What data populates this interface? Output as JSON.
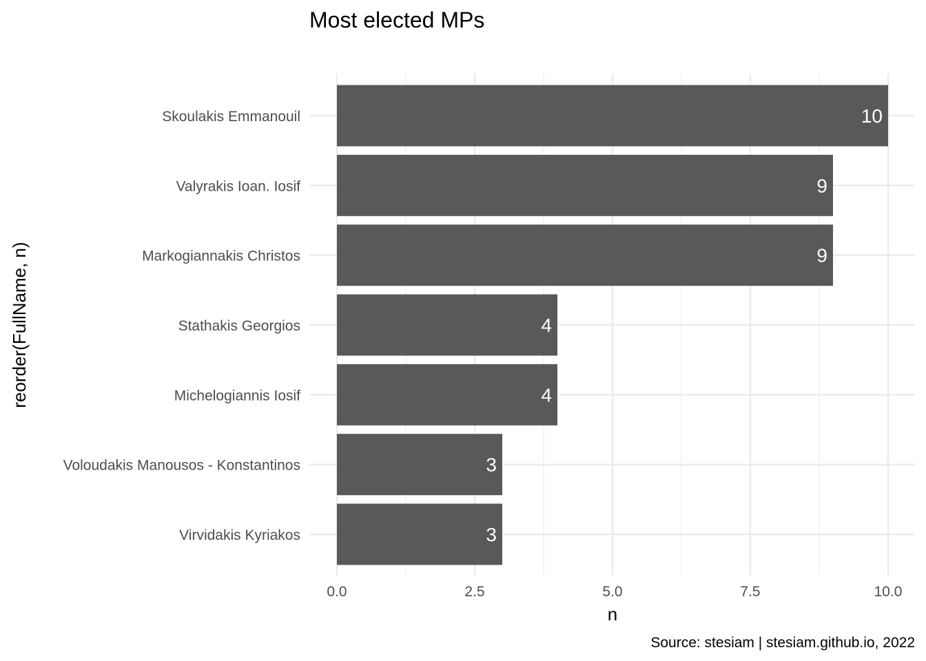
{
  "chart_data": {
    "type": "bar",
    "orientation": "horizontal",
    "title": "Most elected MPs",
    "xlabel": "n",
    "ylabel": "reorder(FullName, n)",
    "caption": "Source: stesiam | stesiam.github.io, 2022",
    "categories": [
      "Skoulakis Emmanouil",
      "Valyrakis Ioan. Iosif",
      "Markogiannakis Christos",
      "Stathakis Georgios",
      "Michelogiannis Iosif",
      "Voloudakis Manousos - Konstantinos",
      "Virvidakis Kyriakos"
    ],
    "values": [
      10,
      9,
      9,
      4,
      4,
      3,
      3
    ],
    "data_labels": [
      "10",
      "9",
      "9",
      "4",
      "4",
      "3",
      "3"
    ],
    "xlim": [
      0,
      10
    ],
    "x_ticks": [
      0,
      2.5,
      5,
      7.5,
      10
    ],
    "x_tick_labels": [
      "0.0",
      "2.5",
      "5.0",
      "7.5",
      "10.0"
    ],
    "grid": true,
    "legend": "none",
    "colors": {
      "bar": "#595959",
      "grid": "#ebebeb",
      "label": "#ffffff",
      "tick": "#4d4d4d",
      "text": "#000000"
    }
  }
}
